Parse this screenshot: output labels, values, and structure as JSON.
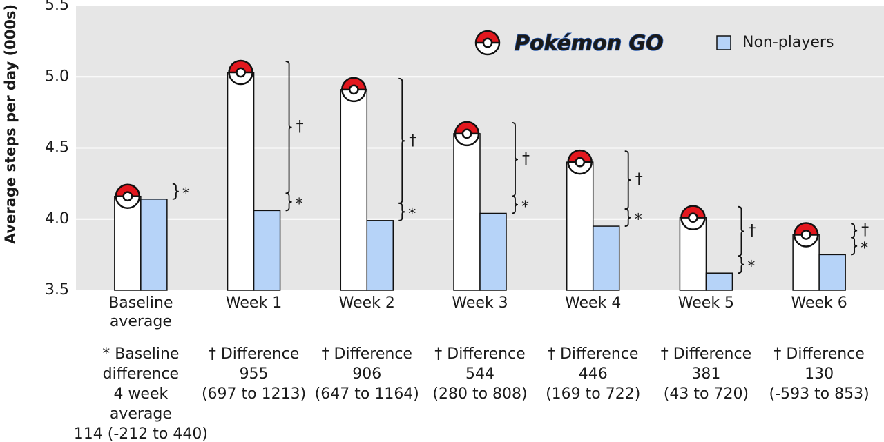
{
  "chart_data": {
    "type": "bar",
    "y_axis_label": "Average steps per day (000s)",
    "categories": [
      "Baseline average",
      "Week 1",
      "Week 2",
      "Week 3",
      "Week 4",
      "Week 5",
      "Week 6"
    ],
    "series": [
      {
        "name": "Pokémon GO",
        "color": "#ffffff",
        "values": [
          4.16,
          5.03,
          4.91,
          4.6,
          4.4,
          4.01,
          3.89
        ]
      },
      {
        "name": "Non-players",
        "color": "#b6d3f8",
        "values": [
          4.14,
          4.06,
          3.99,
          4.04,
          3.95,
          3.62,
          3.75
        ]
      }
    ],
    "ylim": [
      3.5,
      5.5
    ],
    "yticks": [
      3.5,
      {
        "value": 4,
        "label": "4.0"
      },
      4.5,
      {
        "value": 5,
        "label": "5.0"
      },
      5.5
    ],
    "grid": true,
    "legend": "upper right",
    "difference_marker": "†",
    "baseline_marker": "*",
    "annotations": [
      [
        "* Baseline",
        "difference",
        "4 week",
        "average",
        "114 (-212 to 440)"
      ],
      [
        "† Difference",
        "955",
        "(697 to 1213)"
      ],
      [
        "† Difference",
        "906",
        "(647 to 1164)"
      ],
      [
        "† Difference",
        "544",
        "(280 to 808)"
      ],
      [
        "† Difference",
        "446",
        "(169 to 722)"
      ],
      [
        "† Difference",
        "381",
        "(43 to 720)"
      ],
      [
        "† Difference",
        "130",
        "(-593 to 853)"
      ]
    ]
  }
}
